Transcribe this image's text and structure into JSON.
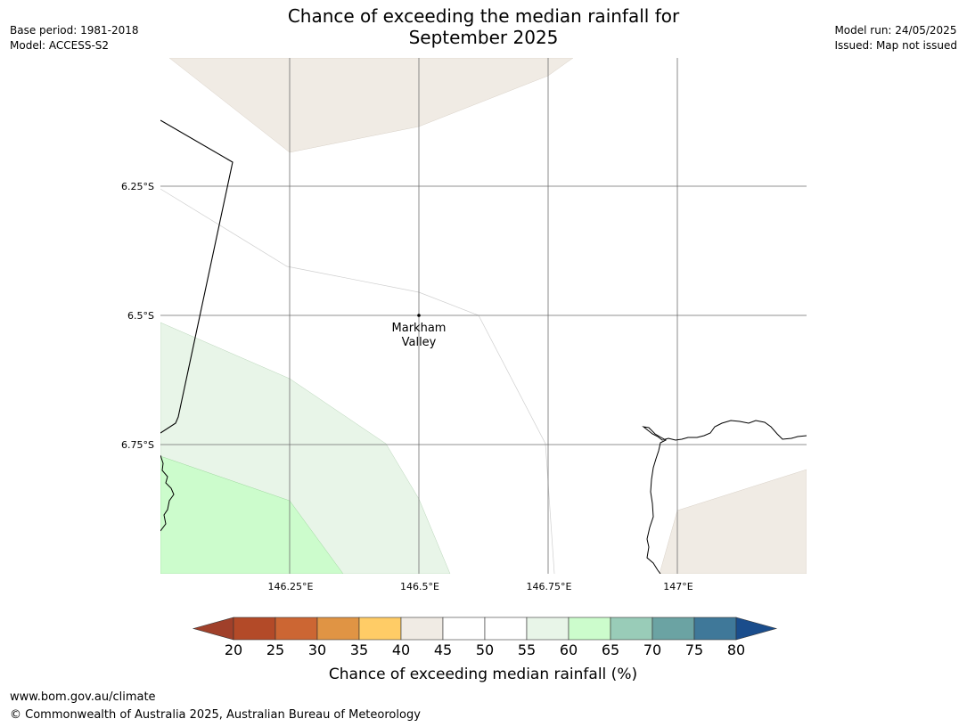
{
  "title": {
    "line1": "Chance of exceeding the median rainfall for",
    "line2": "September 2025"
  },
  "meta_left": {
    "base_period": "Base period: 1981-2018",
    "model": "Model: ACCESS-S2"
  },
  "meta_right": {
    "model_run": "Model run: 24/05/2025",
    "issued": "Issued: Map not issued"
  },
  "map": {
    "lat_labels": [
      "6.25°S",
      "6.5°S",
      "6.75°S"
    ],
    "lon_labels": [
      "146.25°E",
      "146.5°E",
      "146.75°E",
      "147°E"
    ],
    "place": {
      "name_line1": "Markham",
      "name_line2": "Valley"
    },
    "region_colors": {
      "tan": "#f0ebe4",
      "light_green": "#e8f5e8",
      "green": "#ccfccc",
      "border": "#000000",
      "grid": "#6e6e6e"
    }
  },
  "colorbar": {
    "tick_labels": [
      "20",
      "25",
      "30",
      "35",
      "40",
      "45",
      "50",
      "55",
      "60",
      "65",
      "70",
      "75",
      "80"
    ],
    "colors": [
      "#a0402a",
      "#b34a28",
      "#cc6633",
      "#e09444",
      "#ffcc66",
      "#f0ebe4",
      "#ffffff",
      "#ffffff",
      "#e8f5e8",
      "#ccfccc",
      "#99ccb8",
      "#6ba3a3",
      "#3f7899",
      "#1a4d8c"
    ],
    "label": "Chance of exceeding median rainfall (%)"
  },
  "footer": {
    "url": "www.bom.gov.au/climate",
    "copyright": "© Commonwealth of Australia 2025, Australian Bureau of Meteorology"
  }
}
